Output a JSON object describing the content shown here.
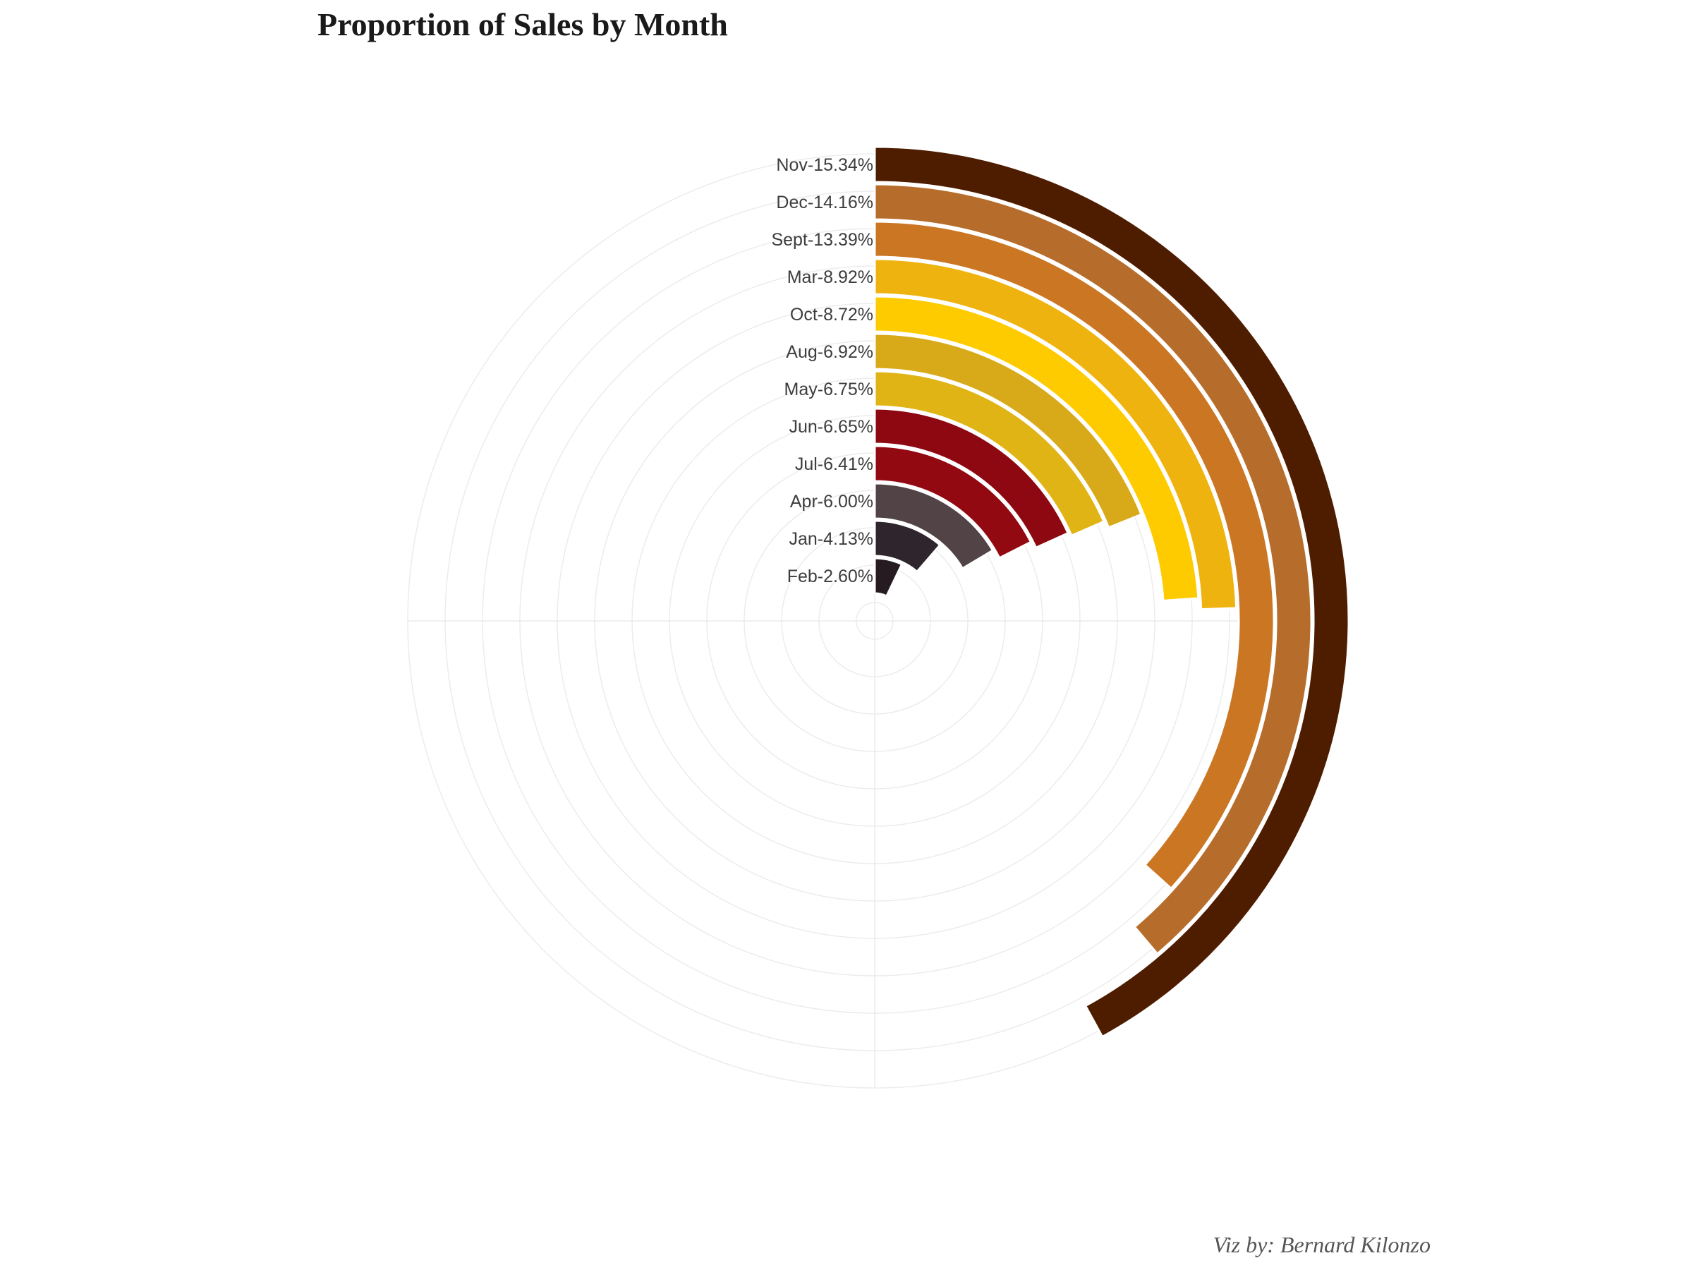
{
  "chart_data": {
    "type": "bar",
    "coordinate_system": "polar (radial bar)",
    "title": "Proportion of Sales by Month",
    "caption": "Viz by: Bernard Kilonzo",
    "unit": "%",
    "grid": true,
    "bars": [
      {
        "label": "Nov-15.34%",
        "category": "Nov",
        "value": 15.34,
        "color": "#4e1d00"
      },
      {
        "label": "Dec-14.16%",
        "category": "Dec",
        "value": 14.16,
        "color": "#b66d2b"
      },
      {
        "label": "Sept-13.39%",
        "category": "Sept",
        "value": 13.39,
        "color": "#cb7623"
      },
      {
        "label": "Mar-8.92%",
        "category": "Mar",
        "value": 8.92,
        "color": "#efb30f"
      },
      {
        "label": "Oct-8.72%",
        "category": "Oct",
        "value": 8.72,
        "color": "#fecb00"
      },
      {
        "label": "Aug-6.92%",
        "category": "Aug",
        "value": 6.92,
        "color": "#d8a918"
      },
      {
        "label": "May-6.75%",
        "category": "May",
        "value": 6.75,
        "color": "#e0b414"
      },
      {
        "label": "Jun-6.65%",
        "category": "Jun",
        "value": 6.65,
        "color": "#8d0811"
      },
      {
        "label": "Jul-6.41%",
        "category": "Jul",
        "value": 6.41,
        "color": "#930912"
      },
      {
        "label": "Apr-6.00%",
        "category": "Apr",
        "value": 6.0,
        "color": "#524346"
      },
      {
        "label": "Jan-4.13%",
        "category": "Jan",
        "value": 4.13,
        "color": "#2e262c"
      },
      {
        "label": "Feb-2.60%",
        "category": "Feb",
        "value": 2.6,
        "color": "#261b20"
      }
    ]
  }
}
